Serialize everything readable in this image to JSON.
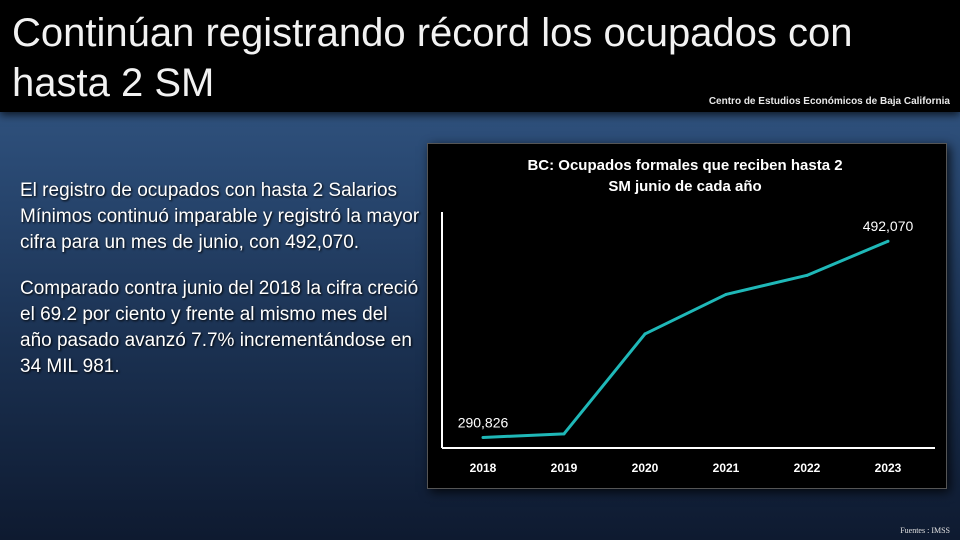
{
  "header": {
    "title": "Continúan registrando récord los ocupados con hasta 2 SM",
    "subtitle": "Centro de Estudios Económicos de Baja California"
  },
  "body": {
    "paragraph1": "El registro de ocupados con hasta 2 Salarios Mínimos continuó imparable y registró la mayor cifra para un mes de junio, con 492,070.",
    "paragraph2": "Comparado contra junio del 2018 la cifra creció el 69.2 por ciento y frente al mismo mes del año pasado avanzó 7.7% incrementándose en 34 MIL 981."
  },
  "footer": {
    "source": "Fuentes : IMSS"
  },
  "colors": {
    "line": "#1fb8b8",
    "panel": "#000000",
    "text": "#ffffff"
  },
  "chart_data": {
    "type": "line",
    "title_line1": "BC: Ocupados formales que reciben hasta 2",
    "title_line2": "SM junio de cada año",
    "categories": [
      "2018",
      "2019",
      "2020",
      "2021",
      "2022",
      "2023"
    ],
    "series": [
      {
        "values": [
          290826,
          294500,
          397000,
          437500,
          457089,
          492070
        ]
      }
    ],
    "data_labels": [
      {
        "index": 0,
        "text": "290,826"
      },
      {
        "index": 5,
        "text": "492,070"
      }
    ],
    "ylim": [
      280000,
      520000
    ],
    "grid": false,
    "xlabel": "",
    "ylabel": ""
  }
}
